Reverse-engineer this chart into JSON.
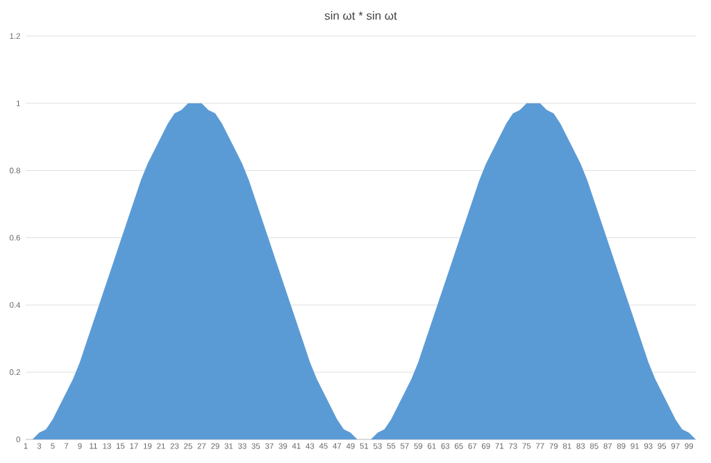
{
  "chart_data": {
    "type": "area",
    "title": "sin ωt * sin ωt",
    "categories": [
      "1",
      null,
      "3",
      null,
      "5",
      null,
      "7",
      null,
      "9",
      null,
      "11",
      null,
      "13",
      null,
      "15",
      null,
      "17",
      null,
      "19",
      null,
      "21",
      null,
      "23",
      null,
      "25",
      null,
      "27",
      null,
      "29",
      null,
      "31",
      null,
      "33",
      null,
      "35",
      null,
      "37",
      null,
      "39",
      null,
      "41",
      null,
      "43",
      null,
      "45",
      null,
      "47",
      null,
      "49",
      null,
      "51",
      null,
      "53",
      null,
      "55",
      null,
      "57",
      null,
      "59",
      null,
      "61",
      null,
      "63",
      null,
      "65",
      null,
      "67",
      null,
      "69",
      null,
      "71",
      null,
      "73",
      null,
      "75",
      null,
      "77",
      null,
      "79",
      null,
      "81",
      null,
      "83",
      null,
      "85",
      null,
      "87",
      null,
      "89",
      null,
      "91",
      null,
      "93",
      null,
      "95",
      null,
      "97",
      null,
      "99",
      null
    ],
    "values": [
      0,
      0,
      0.02,
      0.03,
      0.06,
      0.1,
      0.14,
      0.18,
      0.23,
      0.29,
      0.35,
      0.41,
      0.47,
      0.53,
      0.59,
      0.65,
      0.71,
      0.77,
      0.82,
      0.86,
      0.9,
      0.94,
      0.97,
      0.98,
      1,
      1,
      1,
      0.98,
      0.97,
      0.94,
      0.9,
      0.86,
      0.82,
      0.77,
      0.71,
      0.65,
      0.59,
      0.53,
      0.47,
      0.41,
      0.35,
      0.29,
      0.23,
      0.18,
      0.14,
      0.1,
      0.06,
      0.03,
      0.02,
      0,
      0,
      0,
      0.02,
      0.03,
      0.06,
      0.1,
      0.14,
      0.18,
      0.23,
      0.29,
      0.35,
      0.41,
      0.47,
      0.53,
      0.59,
      0.65,
      0.71,
      0.77,
      0.82,
      0.86,
      0.9,
      0.94,
      0.97,
      0.98,
      1,
      1,
      1,
      0.98,
      0.97,
      0.94,
      0.9,
      0.86,
      0.82,
      0.77,
      0.71,
      0.65,
      0.59,
      0.53,
      0.47,
      0.41,
      0.35,
      0.29,
      0.23,
      0.18,
      0.14,
      0.1,
      0.06,
      0.03,
      0.02,
      0
    ],
    "color": "#5b9bd5",
    "ylim": [
      0,
      1.2
    ],
    "yticks": [
      0,
      0.2,
      0.4,
      0.6,
      0.8,
      1,
      1.2
    ],
    "grid": "y"
  }
}
